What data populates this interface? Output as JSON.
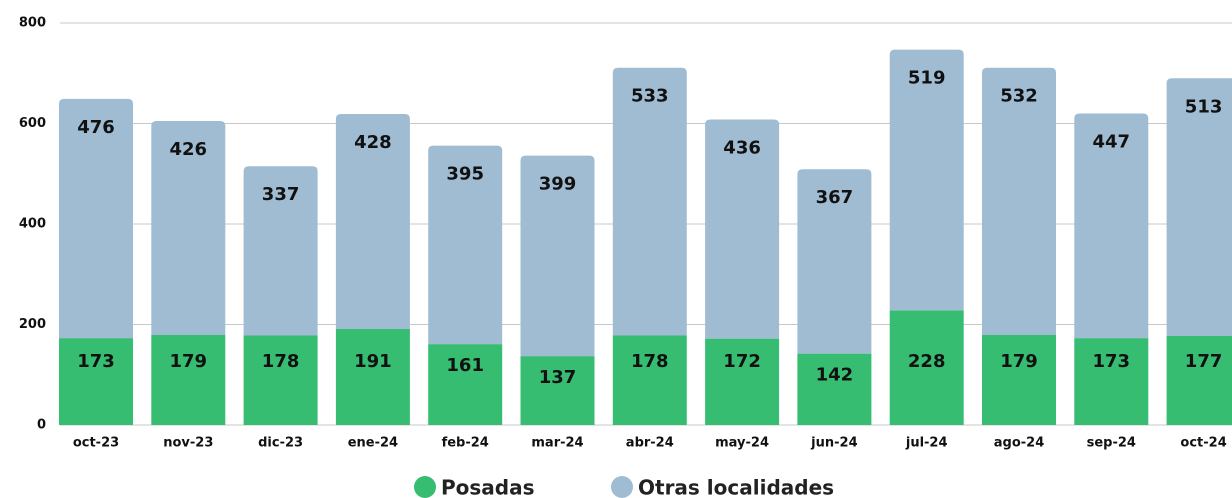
{
  "chart_data": {
    "type": "stacked_bar",
    "categories": [
      "oct-23",
      "nov-23",
      "dic-23",
      "ene-24",
      "feb-24",
      "mar-24",
      "abr-24",
      "may-24",
      "jun-24",
      "jul-24",
      "ago-24",
      "sep-24",
      "oct-24"
    ],
    "series": [
      {
        "name": "Posadas",
        "color": "#36bd72",
        "values": [
          173,
          179,
          178,
          191,
          161,
          137,
          178,
          172,
          142,
          228,
          179,
          173,
          177
        ]
      },
      {
        "name": "Otras localidades",
        "color": "#a0bcd2",
        "values": [
          476,
          426,
          337,
          428,
          395,
          399,
          533,
          436,
          367,
          519,
          532,
          447,
          513
        ]
      }
    ],
    "ylim": [
      0,
      800
    ],
    "yticks": [
      0,
      200,
      400,
      600,
      800
    ],
    "grid": true
  }
}
